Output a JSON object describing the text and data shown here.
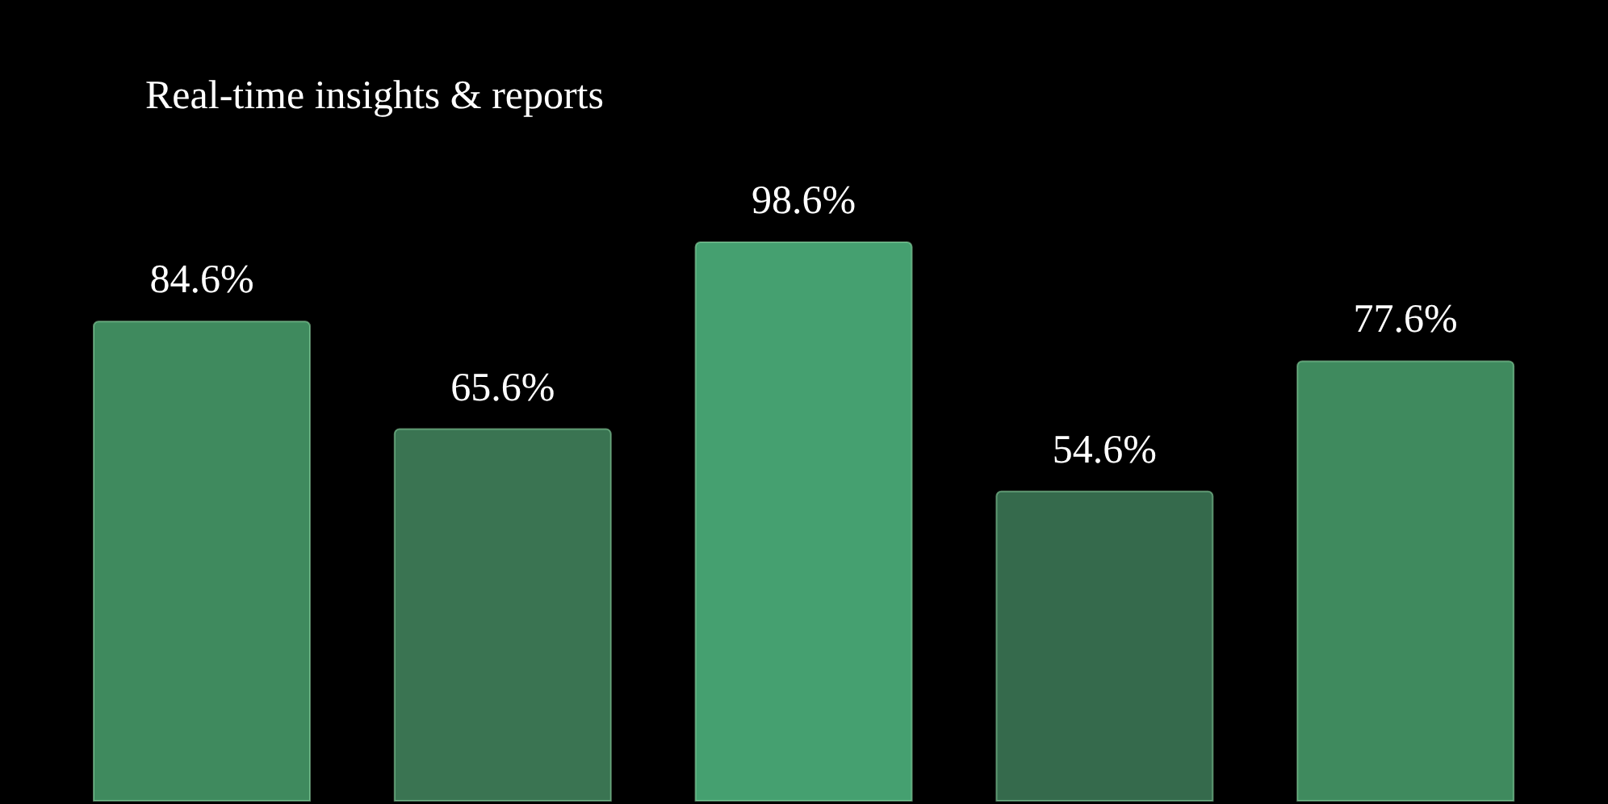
{
  "chart_data": {
    "type": "bar",
    "title": "Real-time insights & reports",
    "categories": [
      null,
      null,
      null,
      null,
      null
    ],
    "values": [
      84.6,
      65.6,
      98.6,
      54.6,
      77.6
    ],
    "colors": [
      "#3f8a5e",
      "#3a7452",
      "#45a070",
      "#356a4c",
      "#3f8a5e"
    ],
    "value_labels": [
      "84.6%",
      "65.6%",
      "98.6%",
      "54.6%",
      "77.6%"
    ]
  }
}
